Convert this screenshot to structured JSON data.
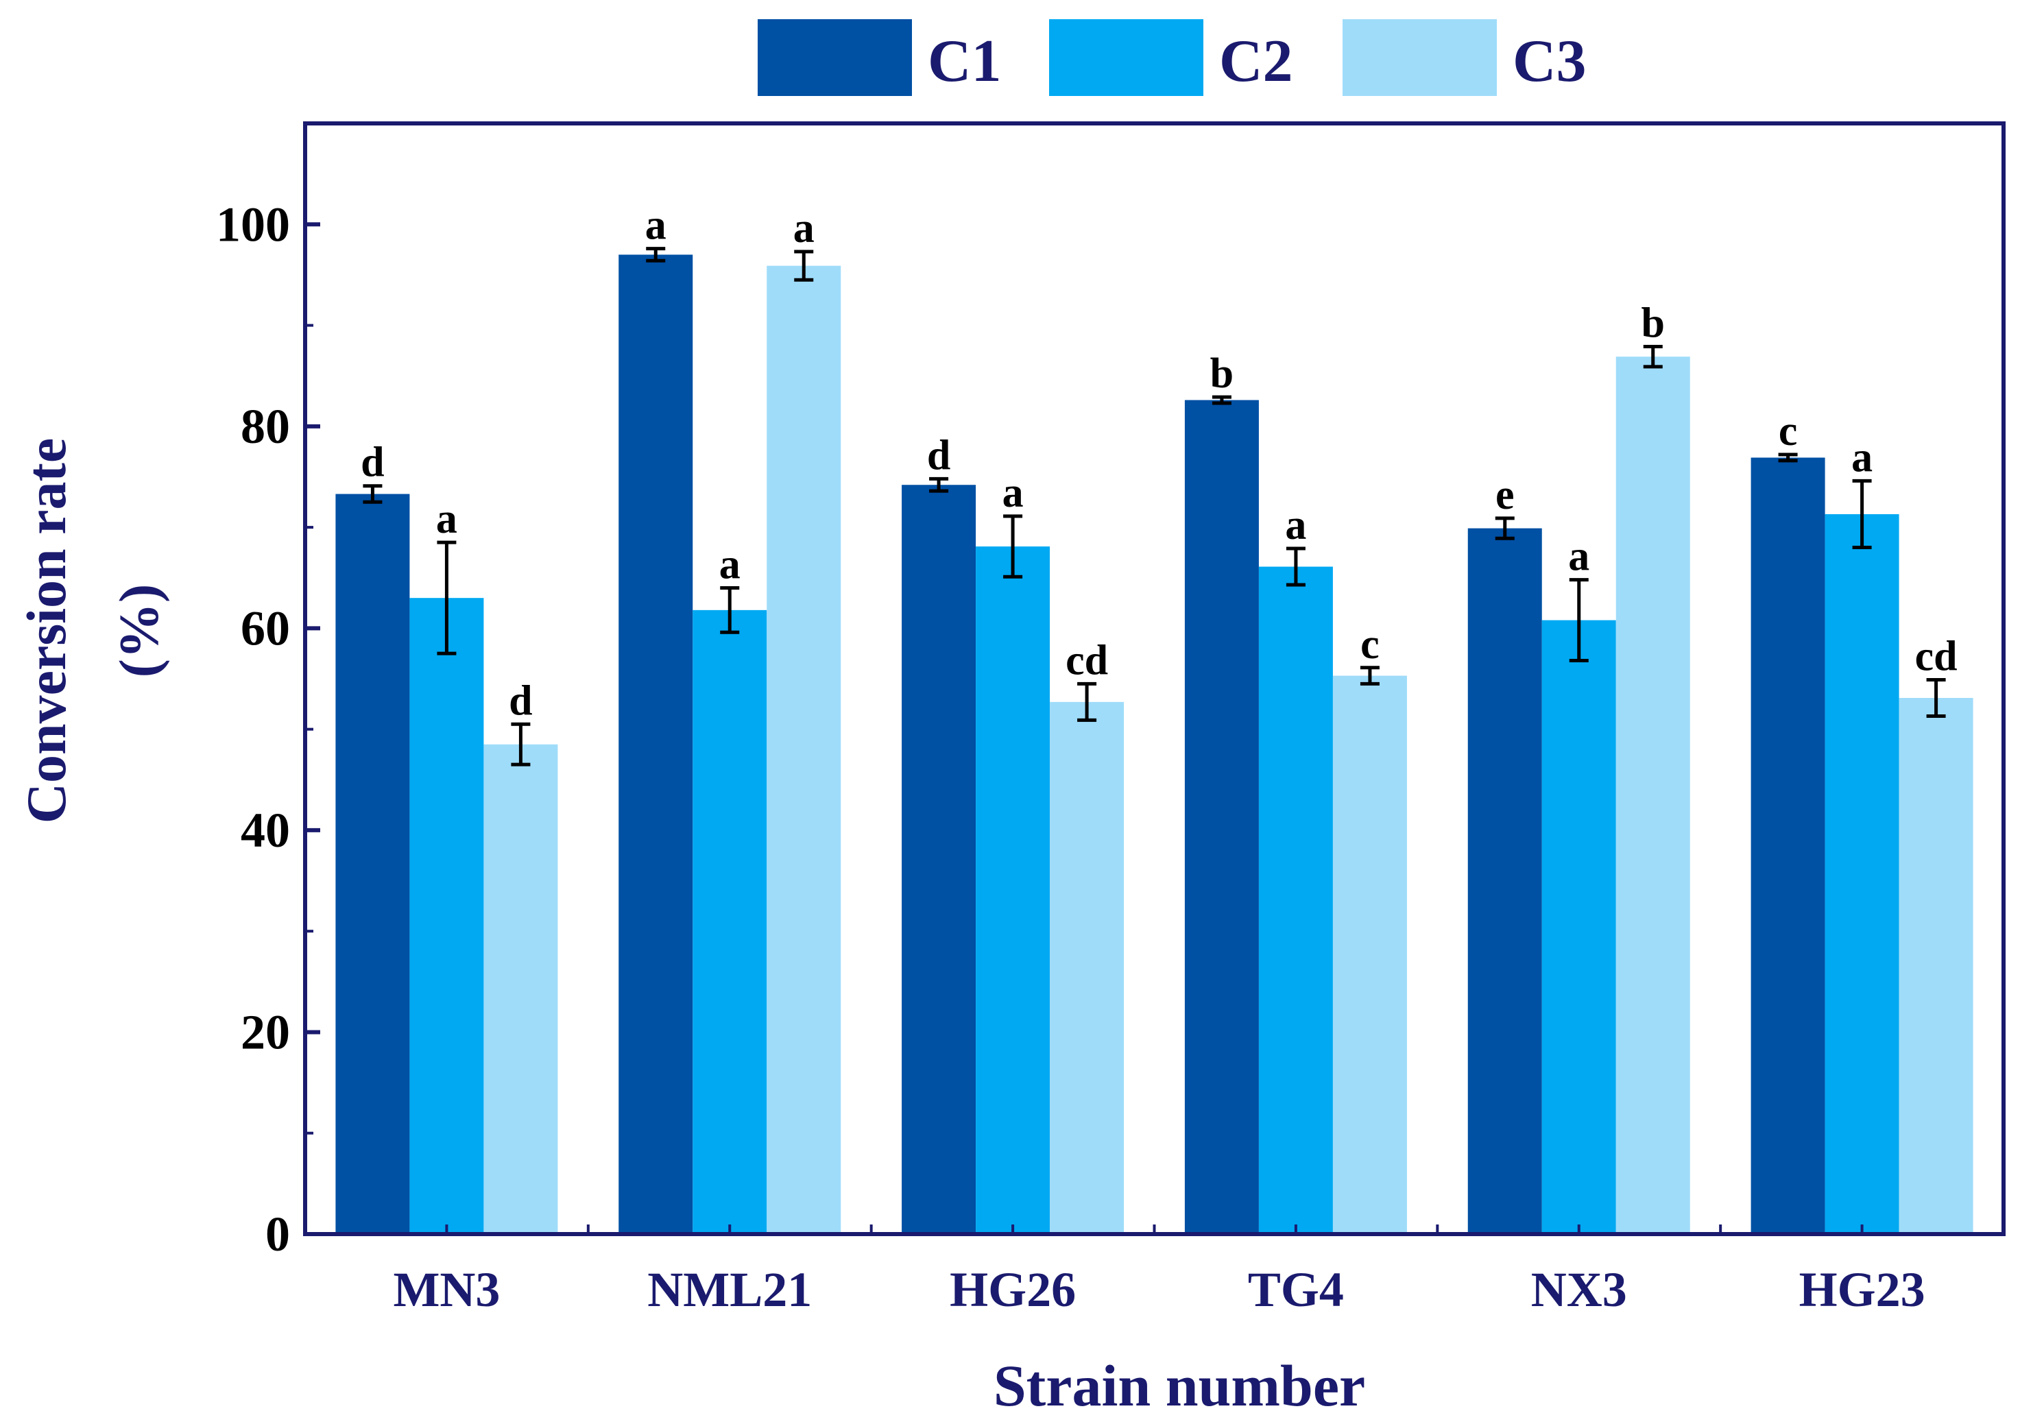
{
  "chart_data": {
    "type": "bar",
    "title": "",
    "xlabel": "Strain number",
    "ylabel_lines": [
      "Conversion rate",
      "(%)"
    ],
    "ylim": [
      0,
      110
    ],
    "yticks": [
      0,
      20,
      40,
      60,
      80,
      100
    ],
    "ytick_labels": [
      "0",
      "20",
      "40",
      "60",
      "80",
      "100"
    ],
    "grid": false,
    "legend_position": "top-center",
    "categories": [
      "MN3",
      "NML21",
      "HG26",
      "TG4",
      "NX3",
      "HG23"
    ],
    "series": [
      {
        "name": "C1",
        "color": "#0050A4",
        "values": [
          73.3,
          97.0,
          74.2,
          82.6,
          69.9,
          76.9
        ],
        "errors": [
          0.8,
          0.6,
          0.6,
          0.3,
          1.0,
          0.3
        ],
        "letters": [
          "d",
          "a",
          "d",
          "b",
          "e",
          "c"
        ]
      },
      {
        "name": "C2",
        "color": "#00A9F2",
        "values": [
          63.0,
          61.8,
          68.1,
          66.1,
          60.8,
          71.3
        ],
        "errors": [
          5.5,
          2.2,
          3.0,
          1.8,
          4.0,
          3.3
        ],
        "letters": [
          "a",
          "a",
          "a",
          "a",
          "a",
          "a"
        ]
      },
      {
        "name": "C3",
        "color": "#9FDCFA",
        "values": [
          48.5,
          95.9,
          52.7,
          55.3,
          86.9,
          53.1
        ],
        "errors": [
          2.0,
          1.4,
          1.8,
          0.8,
          1.0,
          1.8
        ],
        "letters": [
          "d",
          "a",
          "cd",
          "c",
          "b",
          "cd"
        ]
      }
    ]
  }
}
